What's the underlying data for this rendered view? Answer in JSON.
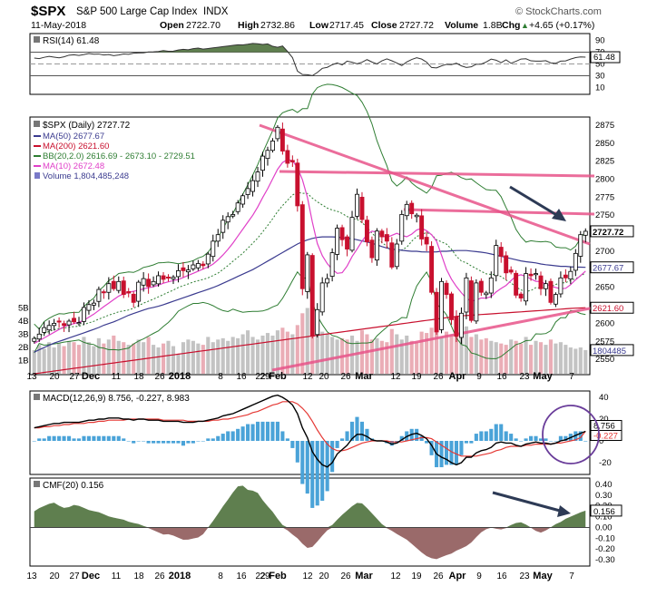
{
  "header": {
    "symbol": "$SPX",
    "name": "S&P 500 Large Cap Index",
    "exchange": "INDX",
    "watermark": "© StockCharts.com",
    "date": "11-May-2018",
    "open_label": "Open",
    "open": "2722.70",
    "high_label": "High",
    "high": "2732.86",
    "low_label": "Low",
    "low": "2717.45",
    "close_label": "Close",
    "close": "2727.72",
    "volume_label": "Volume",
    "volume": "1.8B",
    "chg_label": "Chg",
    "chg": "+4.65 (+0.17%)",
    "chg_arrow": "▲"
  },
  "colors": {
    "up": "#000000",
    "down": "#c8102e",
    "ma50": "#3b3b8f",
    "ma200": "#c8102e",
    "bb": "#2e7d32",
    "ma10": "#e040c8",
    "volume": "#bdbdbd",
    "volume_up": "#bdbdbd",
    "volume_down": "#e8a4ae",
    "trendline": "#e8548a",
    "arrow": "#2d3a55",
    "macd": "#000000",
    "signal": "#e53935",
    "hist": "#4aa3d8",
    "cmf_pos": "#5f7f4f",
    "cmf_neg": "#9a6a6a",
    "rsi_fill": "#5f7f4f",
    "circle": "#6a3d9a"
  },
  "chart_data": [
    {
      "type": "line",
      "panel": "rsi",
      "title": "RSI(14) 61.48",
      "last_label": "61.48",
      "ylim": [
        0,
        100
      ],
      "yticks": [
        90,
        70,
        50,
        30,
        10
      ],
      "hlines": [
        70,
        50,
        30
      ],
      "values": [
        60,
        59,
        61,
        63,
        62,
        60,
        61,
        64,
        66,
        65,
        64,
        67,
        68,
        66,
        67,
        65,
        66,
        64,
        65,
        67,
        66,
        68,
        69,
        68,
        70,
        71,
        70,
        72,
        73,
        71,
        72,
        74,
        75,
        74,
        76,
        77,
        75,
        76,
        77,
        78,
        79,
        80,
        81,
        82,
        83,
        82,
        84,
        85,
        84,
        83,
        84,
        80,
        78,
        82,
        72,
        68,
        42,
        30,
        35,
        28,
        32,
        38,
        45,
        44,
        50,
        52,
        48,
        55,
        53,
        50,
        52,
        58,
        55,
        49,
        52,
        60,
        57,
        54,
        50,
        46,
        56,
        58,
        61,
        58,
        53,
        44,
        43,
        46,
        50,
        47,
        53,
        48,
        45,
        43,
        47,
        51,
        49,
        55,
        59,
        56,
        52,
        57,
        51,
        54,
        58,
        60,
        55,
        56,
        53,
        57,
        54,
        50,
        52,
        56,
        55,
        59,
        61,
        62,
        61.48
      ]
    },
    {
      "type": "candlestick",
      "panel": "price",
      "title": "$SPX (Daily) 2727.72",
      "legend": [
        {
          "name": "MA(50) 2677.67",
          "color": "#3b3b8f"
        },
        {
          "name": "MA(200) 2621.60",
          "color": "#c8102e"
        },
        {
          "name": "BB(20,2.0) 2616.69 - 2673.10 - 2729.51",
          "color": "#2e7d32"
        },
        {
          "name": "MA(10) 2672.48",
          "color": "#e040c8"
        },
        {
          "name": "Volume 1,804,485,248",
          "color": "#7a7ac8"
        }
      ],
      "price_ticks": [
        2875,
        2850,
        2825,
        2800,
        2775,
        2750,
        2725,
        2700,
        2675,
        2650,
        2625,
        2600,
        2575,
        2550
      ],
      "volume_ticks": [
        "5B",
        "4B",
        "3B",
        "2B",
        "1B"
      ],
      "ylim": [
        2530,
        2885
      ],
      "last_price_label": "2727.72",
      "ma50_label": "2677.67",
      "ma200_label": "2621.60",
      "volume_label": "1804485",
      "closes": [
        2579,
        2585,
        2594,
        2597,
        2600,
        2602,
        2597,
        2603,
        2602,
        2601,
        2622,
        2626,
        2628,
        2647,
        2643,
        2655,
        2648,
        2658,
        2640,
        2642,
        2629,
        2657,
        2662,
        2651,
        2658,
        2666,
        2661,
        2664,
        2664,
        2673,
        2673,
        2674,
        2681,
        2683,
        2680,
        2696,
        2714,
        2723,
        2743,
        2748,
        2751,
        2767,
        2777,
        2787,
        2798,
        2810,
        2832,
        2840,
        2853,
        2872,
        2839,
        2822,
        2824,
        2763,
        2648,
        2695,
        2582,
        2619,
        2656,
        2662,
        2698,
        2732,
        2716,
        2703,
        2747,
        2779,
        2744,
        2713,
        2691,
        2728,
        2720,
        2714,
        2678,
        2710,
        2751,
        2765,
        2752,
        2750,
        2717,
        2710,
        2643,
        2588,
        2658,
        2640,
        2605,
        2582,
        2614,
        2663,
        2604,
        2656,
        2643,
        2642,
        2663,
        2708,
        2693,
        2670,
        2671,
        2639,
        2635,
        2669,
        2666,
        2669,
        2648,
        2655,
        2629,
        2640,
        2663,
        2663,
        2672,
        2697,
        2723,
        2727.72
      ],
      "ma50": [
        2560,
        2564,
        2568,
        2572,
        2575,
        2578,
        2581,
        2584,
        2587,
        2590,
        2593,
        2597,
        2600,
        2603,
        2607,
        2611,
        2614,
        2617,
        2620,
        2622,
        2624,
        2627,
        2630,
        2633,
        2636,
        2639,
        2642,
        2645,
        2648,
        2651,
        2655,
        2659,
        2663,
        2667,
        2671,
        2675,
        2680,
        2685,
        2690,
        2695,
        2700,
        2705,
        2710,
        2714,
        2717,
        2719,
        2720,
        2720,
        2720,
        2719,
        2718,
        2717,
        2715,
        2713,
        2711,
        2708,
        2705,
        2703,
        2702,
        2701,
        2700,
        2700,
        2699,
        2699,
        2699,
        2700,
        2700,
        2701,
        2701,
        2701,
        2700,
        2699,
        2698,
        2696,
        2694,
        2692,
        2690,
        2688,
        2686,
        2685,
        2684,
        2682,
        2681,
        2680,
        2679,
        2679,
        2678,
        2678,
        2677.67
      ],
      "ma10": [
        2572,
        2576,
        2580,
        2584,
        2588,
        2592,
        2596,
        2598,
        2600,
        2602,
        2605,
        2610,
        2614,
        2620,
        2625,
        2630,
        2635,
        2640,
        2642,
        2644,
        2645,
        2647,
        2649,
        2650,
        2652,
        2655,
        2657,
        2659,
        2660,
        2663,
        2666,
        2669,
        2672,
        2675,
        2678,
        2682,
        2688,
        2695,
        2703,
        2712,
        2722,
        2732,
        2742,
        2752,
        2764,
        2778,
        2790,
        2805,
        2818,
        2826,
        2828,
        2824,
        2810,
        2790,
        2760,
        2720,
        2700,
        2686,
        2678,
        2670,
        2668,
        2675,
        2690,
        2700,
        2712,
        2722,
        2728,
        2727,
        2722,
        2719,
        2722,
        2725,
        2722,
        2720,
        2724,
        2730,
        2732,
        2728,
        2722,
        2712,
        2690,
        2670,
        2658,
        2648,
        2640,
        2632,
        2630,
        2634,
        2636,
        2634,
        2640,
        2647,
        2650,
        2656,
        2664,
        2668,
        2666,
        2663,
        2658,
        2659,
        2655,
        2652,
        2650,
        2648,
        2648,
        2653,
        2660,
        2666,
        2672.48
      ],
      "ma200": [
        2530,
        2532,
        2534,
        2536,
        2538,
        2540,
        2542,
        2544,
        2546,
        2548,
        2550,
        2552,
        2554,
        2556,
        2558,
        2560,
        2562,
        2564,
        2566,
        2568,
        2570,
        2572,
        2574,
        2576,
        2578,
        2580,
        2582,
        2584,
        2586,
        2588,
        2590,
        2592,
        2594,
        2596,
        2598,
        2600,
        2602,
        2604,
        2606,
        2608,
        2610,
        2611,
        2612,
        2613,
        2614,
        2615,
        2616,
        2617,
        2618,
        2619,
        2620,
        2621,
        2621.6
      ],
      "volume_in_billions": [
        1.8,
        2.2,
        1.9,
        2.4,
        2.0,
        2.3,
        2.1,
        2.5,
        2.4,
        2.2,
        2.8,
        2.4,
        2.1,
        2.7,
        2.3,
        2.6,
        2.9,
        2.5,
        2.4,
        2.2,
        2.3,
        2.6,
        2.4,
        2.8,
        2.2,
        2.0,
        2.3,
        2.5,
        2.1,
        1.5,
        2.4,
        2.6,
        2.5,
        2.3,
        2.2,
        2.8,
        2.4,
        2.6,
        2.7,
        2.5,
        2.8,
        2.7,
        3.0,
        3.3,
        2.8,
        2.6,
        2.9,
        3.1,
        2.9,
        3.3,
        3.5,
        3.2,
        3.0,
        3.7,
        4.6,
        5.0,
        4.4,
        3.8,
        3.2,
        3.0,
        2.8,
        2.6,
        2.7,
        2.6,
        2.9,
        2.5,
        3.3,
        3.0,
        2.6,
        2.7,
        2.5,
        2.4,
        3.4,
        3.0,
        2.6,
        2.9,
        2.5,
        2.4,
        3.2,
        3.1,
        3.5,
        3.2,
        2.8,
        3.2,
        3.0,
        3.4,
        3.1,
        3.6,
        2.8,
        3.0,
        2.6,
        2.7,
        2.5,
        2.4,
        2.3,
        2.2,
        2.6,
        2.5,
        2.3,
        2.8,
        2.2,
        2.5,
        2.4,
        2.2,
        2.6,
        2.3,
        2.4,
        2.2,
        2.0,
        1.9,
        2.0,
        1.8
      ]
    },
    {
      "type": "line",
      "panel": "macd",
      "title": "MACD(12,26,9) 8.756, -0.227, 8.983",
      "yticks": [
        40,
        20,
        0,
        -20
      ],
      "ylim": [
        -30,
        45
      ],
      "macd_label": "8.756",
      "hist_label": "-0.227",
      "macd": [
        12,
        13,
        14,
        15,
        16,
        16,
        17,
        17,
        17,
        17,
        18,
        19,
        19,
        20,
        20,
        21,
        21,
        21,
        20,
        20,
        19,
        20,
        20,
        19,
        19,
        19,
        18,
        18,
        18,
        18,
        17,
        17,
        17,
        18,
        18,
        19,
        20,
        21,
        23,
        24,
        25,
        27,
        29,
        31,
        33,
        35,
        37,
        39,
        41,
        42,
        40,
        37,
        33,
        25,
        12,
        3,
        -10,
        -17,
        -22,
        -24,
        -20,
        -12,
        -8,
        -4,
        2,
        6,
        6,
        4,
        1,
        0,
        0,
        -1,
        -3,
        -2,
        1,
        4,
        6,
        7,
        5,
        2,
        -4,
        -12,
        -15,
        -17,
        -20,
        -22,
        -20,
        -15,
        -15,
        -11,
        -9,
        -8,
        -6,
        -2,
        -1,
        -2,
        -2,
        -4,
        -5,
        -3,
        -2,
        -1,
        -2,
        -2,
        -3,
        -2,
        0,
        1,
        3,
        5,
        7,
        8.756
      ],
      "signal": [
        12,
        12,
        13,
        13,
        14,
        14,
        15,
        15,
        16,
        16,
        16,
        17,
        17,
        18,
        18,
        19,
        19,
        19,
        19,
        20,
        20,
        20,
        20,
        20,
        20,
        20,
        19,
        19,
        19,
        19,
        19,
        18,
        18,
        18,
        18,
        18,
        19,
        19,
        20,
        20,
        21,
        22,
        23,
        24,
        26,
        27,
        29,
        31,
        33,
        34,
        36,
        36,
        36,
        34,
        30,
        25,
        18,
        10,
        3,
        -3,
        -7,
        -9,
        -9,
        -8,
        -6,
        -4,
        -2,
        -1,
        0,
        0,
        0,
        0,
        -1,
        -1,
        -1,
        0,
        1,
        2,
        3,
        3,
        2,
        -1,
        -4,
        -7,
        -10,
        -12,
        -14,
        -14,
        -14,
        -14,
        -13,
        -12,
        -11,
        -9,
        -8,
        -6,
        -5,
        -5,
        -5,
        -4,
        -4,
        -3,
        -3,
        -3,
        -3,
        -2,
        -2,
        -1,
        0,
        1,
        3,
        8.983
      ]
    },
    {
      "type": "area",
      "panel": "cmf",
      "title": "CMF(20) 0.156",
      "last_label": "0.156",
      "ylim": [
        -0.35,
        0.45
      ],
      "yticks": [
        "0.40",
        "0.30",
        "0.20",
        "0.10",
        "0.00",
        "-0.10",
        "-0.20",
        "-0.30"
      ],
      "values": [
        0.15,
        0.18,
        0.2,
        0.22,
        0.23,
        0.2,
        0.18,
        0.19,
        0.21,
        0.2,
        0.18,
        0.16,
        0.15,
        0.14,
        0.12,
        0.1,
        0.09,
        0.08,
        0.07,
        0.05,
        0.04,
        0.03,
        0.01,
        -0.01,
        -0.03,
        -0.05,
        -0.07,
        -0.06,
        -0.08,
        -0.1,
        -0.12,
        -0.11,
        -0.1,
        -0.09,
        -0.05,
        0.02,
        0.08,
        0.15,
        0.22,
        0.28,
        0.35,
        0.4,
        0.38,
        0.33,
        0.35,
        0.3,
        0.22,
        0.18,
        0.12,
        0.05,
        0.0,
        -0.05,
        -0.08,
        -0.12,
        -0.18,
        -0.2,
        -0.16,
        -0.1,
        -0.05,
        0.0,
        0.05,
        0.1,
        0.14,
        0.18,
        0.22,
        0.24,
        0.2,
        0.15,
        0.1,
        0.05,
        0.0,
        -0.02,
        -0.05,
        -0.08,
        -0.1,
        -0.14,
        -0.18,
        -0.22,
        -0.26,
        -0.28,
        -0.3,
        -0.28,
        -0.26,
        -0.25,
        -0.22,
        -0.2,
        -0.18,
        -0.15,
        -0.1,
        -0.05,
        -0.02,
        0.0,
        -0.01,
        -0.02,
        -0.01,
        0.02,
        0.04,
        0.05,
        0.03,
        0.0,
        -0.03,
        -0.05,
        -0.03,
        0.0,
        0.03,
        0.05,
        0.08,
        0.1,
        0.12,
        0.14,
        0.156
      ]
    }
  ],
  "x_axis": {
    "labels": [
      "13",
      "20",
      "27",
      "Dec",
      "11",
      "18",
      "26",
      "2018",
      "8",
      "16",
      "22",
      "29",
      "Feb",
      "12",
      "20",
      "26",
      "Mar",
      "12",
      "19",
      "26",
      "Apr",
      "9",
      "16",
      "23",
      "May",
      "7"
    ],
    "bold": [
      "Dec",
      "2018",
      "Feb",
      "Mar",
      "Apr",
      "May"
    ]
  }
}
